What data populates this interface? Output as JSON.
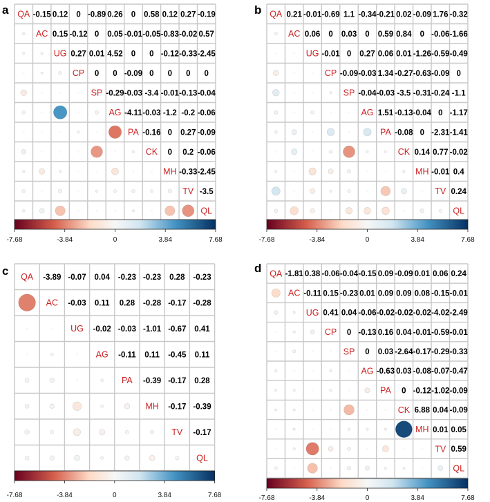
{
  "chart_data": [
    {
      "panel": "a",
      "type": "heatmap",
      "subtype": "correlation-matrix-circles",
      "variables": [
        "QA",
        "AC",
        "UG",
        "CP",
        "SP",
        "AG",
        "PA",
        "CK",
        "MH",
        "TV",
        "QL"
      ],
      "upper": [
        [
          "",
          "-0.15",
          "0.12",
          "0",
          "-0.89",
          "0.26",
          "0",
          "0.58",
          "0.12",
          "0.27",
          "-0.19"
        ],
        [
          "",
          "",
          "0.15",
          "-0.12",
          "0",
          "0.05",
          "-0.01",
          "-0.05",
          "-0.83",
          "-0.02",
          "0.57"
        ],
        [
          "",
          "",
          "",
          "0.27",
          "0.01",
          "4.52",
          "0",
          "0",
          "-0.12",
          "-0.33",
          "-2.45"
        ],
        [
          "",
          "",
          "",
          "",
          "0",
          "0",
          "-0.09",
          "0",
          "0",
          "0",
          "0"
        ],
        [
          "",
          "",
          "",
          "",
          "",
          "-0.29",
          "-0.03",
          "-3.4",
          "-0.01",
          "-0.13",
          "-0.04"
        ],
        [
          "",
          "",
          "",
          "",
          "",
          "",
          "-4.11",
          "-0.03",
          "-1.2",
          "-0.2",
          "-0.06"
        ],
        [
          "",
          "",
          "",
          "",
          "",
          "",
          "",
          "-0.16",
          "0",
          "0.27",
          "-0.09"
        ],
        [
          "",
          "",
          "",
          "",
          "",
          "",
          "",
          "",
          "0",
          "0.2",
          "-0.06"
        ],
        [
          "",
          "",
          "",
          "",
          "",
          "",
          "",
          "",
          "",
          "-0.33",
          "-2.45"
        ],
        [
          "",
          "",
          "",
          "",
          "",
          "",
          "",
          "",
          "",
          "",
          "-3.5"
        ]
      ],
      "legend": {
        "min": -7.68,
        "max": 7.68,
        "ticks": [
          "-7.68",
          "-3.84",
          "0",
          "3.84",
          "7.68"
        ]
      }
    },
    {
      "panel": "b",
      "type": "heatmap",
      "subtype": "correlation-matrix-circles",
      "variables": [
        "QA",
        "AC",
        "UG",
        "CP",
        "SP",
        "AG",
        "PA",
        "CK",
        "MH",
        "TV",
        "QL"
      ],
      "upper": [
        [
          "",
          "0.21",
          "-0.01",
          "-0.69",
          "1.1",
          "-0.34",
          "-0.21",
          "0.02",
          "-0.09",
          "1.76",
          "-0.32"
        ],
        [
          "",
          "",
          "0.06",
          "0",
          "0.03",
          "0",
          "0.59",
          "0.84",
          "0",
          "-0.06",
          "-1.66"
        ],
        [
          "",
          "",
          "",
          "-0.01",
          "0",
          "0.27",
          "0.06",
          "0.01",
          "-1.26",
          "-0.59",
          "-0.49"
        ],
        [
          "",
          "",
          "",
          "",
          "-0.09",
          "-0.03",
          "1.34",
          "-0.27",
          "-0.63",
          "-0.09",
          "0"
        ],
        [
          "",
          "",
          "",
          "",
          "",
          "-0.04",
          "-0.03",
          "-3.5",
          "-0.31",
          "-0.24",
          "-1.1"
        ],
        [
          "",
          "",
          "",
          "",
          "",
          "",
          "1.51",
          "-0.13",
          "-0.04",
          "0",
          "-1.17"
        ],
        [
          "",
          "",
          "",
          "",
          "",
          "",
          "",
          "-0.08",
          "0",
          "-2.31",
          "-1.41"
        ],
        [
          "",
          "",
          "",
          "",
          "",
          "",
          "",
          "",
          "0.14",
          "0.77",
          "-0.02"
        ],
        [
          "",
          "",
          "",
          "",
          "",
          "",
          "",
          "",
          "",
          "-0.01",
          "0.4"
        ],
        [
          "",
          "",
          "",
          "",
          "",
          "",
          "",
          "",
          "",
          "",
          "0.24"
        ]
      ],
      "legend": {
        "min": -7.68,
        "max": 7.68,
        "ticks": [
          "-7.68",
          "-3.84",
          "0",
          "3.84",
          "7.68"
        ]
      }
    },
    {
      "panel": "c",
      "type": "heatmap",
      "subtype": "correlation-matrix-circles",
      "variables": [
        "QA",
        "AC",
        "UG",
        "AG",
        "PA",
        "MH",
        "TV",
        "QL"
      ],
      "upper": [
        [
          "",
          "-3.89",
          "-0.07",
          "0.04",
          "-0.23",
          "-0.23",
          "0.28",
          "-0.23"
        ],
        [
          "",
          "",
          "-0.03",
          "0.11",
          "0.28",
          "-0.28",
          "-0.17",
          "-0.28"
        ],
        [
          "",
          "",
          "",
          "-0.02",
          "-0.03",
          "-1.01",
          "-0.67",
          "0.41"
        ],
        [
          "",
          "",
          "",
          "",
          "-0.11",
          "0.11",
          "-0.45",
          "0.11"
        ],
        [
          "",
          "",
          "",
          "",
          "",
          "-0.39",
          "-0.17",
          "0.28"
        ],
        [
          "",
          "",
          "",
          "",
          "",
          "",
          "-0.17",
          "-0.39"
        ],
        [
          "",
          "",
          "",
          "",
          "",
          "",
          "",
          "-0.17"
        ]
      ],
      "legend": {
        "min": -7.68,
        "max": 7.68,
        "ticks": [
          "-7.68",
          "-3.84",
          "0",
          "3.84",
          "7.68"
        ]
      }
    },
    {
      "panel": "d",
      "type": "heatmap",
      "subtype": "correlation-matrix-circles",
      "variables": [
        "QA",
        "AC",
        "UG",
        "CP",
        "SP",
        "AG",
        "PA",
        "CK",
        "MH",
        "TV",
        "QL"
      ],
      "upper": [
        [
          "",
          "-1.81",
          "0.38",
          "-0.06",
          "-0.04",
          "-0.15",
          "0.09",
          "-0.09",
          "0.01",
          "0.06",
          "0.24"
        ],
        [
          "",
          "",
          "-0.11",
          "0.15",
          "-0.23",
          "0.01",
          "0.09",
          "0.09",
          "0.08",
          "-0.15",
          "-0.01"
        ],
        [
          "",
          "",
          "",
          "0.41",
          "0.04",
          "-0.06",
          "-0.02",
          "-0.02",
          "-0.02",
          "-4.02",
          "-2.49"
        ],
        [
          "",
          "",
          "",
          "",
          "0",
          "-0.13",
          "0.16",
          "0.04",
          "-0.01",
          "-0.59",
          "-0.01"
        ],
        [
          "",
          "",
          "",
          "",
          "",
          "0",
          "0.03",
          "-2.64",
          "-0.17",
          "-0.29",
          "-0.33"
        ],
        [
          "",
          "",
          "",
          "",
          "",
          "",
          "-0.63",
          "0.03",
          "-0.08",
          "-0.07",
          "-0.47"
        ],
        [
          "",
          "",
          "",
          "",
          "",
          "",
          "",
          "0",
          "-0.12",
          "-1.02",
          "-0.09"
        ],
        [
          "",
          "",
          "",
          "",
          "",
          "",
          "",
          "",
          "6.88",
          "0.04",
          "-0.09"
        ],
        [
          "",
          "",
          "",
          "",
          "",
          "",
          "",
          "",
          "",
          "0.01",
          "0.05"
        ],
        [
          "",
          "",
          "",
          "",
          "",
          "",
          "",
          "",
          "",
          "",
          "0.59"
        ]
      ],
      "legend": {
        "min": -7.68,
        "max": 7.68,
        "ticks": [
          "-7.68",
          "-3.84",
          "0",
          "3.84",
          "7.68"
        ]
      }
    }
  ],
  "colors": {
    "negative_strong": "#67001f",
    "negative_mid": "#d6604d",
    "negative_light": "#fddbc7",
    "neutral": "#f7f7f7",
    "positive_light": "#d1e5f0",
    "positive_mid": "#4393c3",
    "positive_strong": "#053061",
    "label": "#cc2222",
    "value": "#000000",
    "grid": "#c8c8c8"
  }
}
